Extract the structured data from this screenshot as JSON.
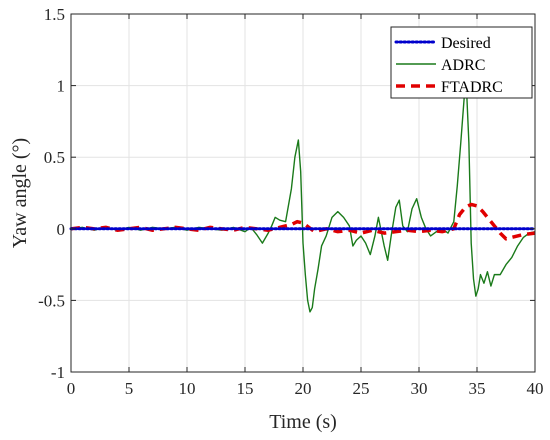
{
  "chart_data": {
    "type": "line",
    "xlabel": "Time (s)",
    "ylabel": "Yaw angle (°)",
    "xlim": [
      0,
      40
    ],
    "ylim": [
      -1,
      1.5
    ],
    "x_ticks": [
      "0",
      "5",
      "10",
      "15",
      "20",
      "25",
      "30",
      "35",
      "40"
    ],
    "y_ticks": [
      "-1",
      "-0.5",
      "0",
      "0.5",
      "1",
      "1.5"
    ],
    "grid": true,
    "legend_position": "top-right",
    "series": [
      {
        "name": "Desired",
        "color": "#0000cc",
        "style": "dotted",
        "x": [
          0,
          40
        ],
        "y": [
          0,
          0
        ]
      },
      {
        "name": "ADRC",
        "color": "#1a7a1a",
        "style": "solid",
        "x": [
          0,
          1,
          2,
          3,
          4,
          5,
          6,
          7,
          8,
          9,
          10,
          11,
          12,
          13,
          14,
          15,
          15.5,
          16,
          16.5,
          17,
          17.3,
          17.6,
          18,
          18.5,
          19,
          19.3,
          19.6,
          19.8,
          20,
          20.2,
          20.4,
          20.6,
          20.8,
          21,
          21.3,
          21.6,
          22,
          22.5,
          23,
          23.5,
          24,
          24.3,
          24.6,
          25,
          25.4,
          25.8,
          26.2,
          26.5,
          27,
          27.3,
          27.6,
          28,
          28.3,
          28.6,
          29,
          29.4,
          29.8,
          30.2,
          30.6,
          31,
          31.5,
          32,
          32.5,
          33,
          33.3,
          33.6,
          33.9,
          34.1,
          34.3,
          34.5,
          34.7,
          34.9,
          35.1,
          35.3,
          35.6,
          35.9,
          36.2,
          36.5,
          37,
          37.5,
          38,
          38.5,
          39,
          39.5,
          40
        ],
        "y": [
          0,
          0.01,
          -0.01,
          0.01,
          -0.01,
          0.01,
          -0.01,
          0.01,
          0,
          0.01,
          -0.01,
          0.01,
          0,
          -0.01,
          0.01,
          -0.02,
          0.01,
          -0.04,
          -0.1,
          -0.03,
          0.02,
          0.08,
          0.06,
          0.05,
          0.28,
          0.5,
          0.62,
          0.4,
          -0.1,
          -0.32,
          -0.5,
          -0.58,
          -0.55,
          -0.42,
          -0.28,
          -0.12,
          -0.05,
          0.08,
          0.12,
          0.08,
          0.02,
          -0.12,
          -0.08,
          -0.05,
          -0.1,
          -0.18,
          -0.05,
          0.08,
          -0.12,
          -0.22,
          -0.05,
          0.15,
          0.2,
          0.02,
          -0.02,
          0.14,
          0.21,
          0.08,
          0.0,
          -0.05,
          -0.02,
          0.0,
          -0.03,
          0.05,
          0.3,
          0.6,
          0.92,
          0.97,
          0.6,
          -0.1,
          -0.35,
          -0.47,
          -0.42,
          -0.32,
          -0.38,
          -0.3,
          -0.4,
          -0.32,
          -0.32,
          -0.25,
          -0.2,
          -0.12,
          -0.06,
          -0.03,
          -0.02
        ]
      },
      {
        "name": "FTADRC",
        "color": "#e00000",
        "style": "dashed",
        "x": [
          0,
          1,
          2,
          3,
          4,
          5,
          6,
          7,
          8,
          9,
          10,
          11,
          12,
          13,
          14,
          15,
          16,
          17,
          18,
          19,
          19.5,
          20,
          21,
          22,
          23,
          24,
          25,
          26,
          27,
          28,
          29,
          30,
          31,
          32,
          33,
          33.5,
          34,
          34.5,
          35,
          35.5,
          36,
          36.5,
          37,
          37.5,
          38,
          39,
          40
        ],
        "y": [
          0,
          0.01,
          0,
          0.01,
          -0.01,
          0,
          0.01,
          -0.01,
          0,
          0.01,
          0,
          -0.01,
          0.01,
          0,
          -0.01,
          0.01,
          0,
          -0.01,
          0.01,
          0.03,
          0.05,
          0.04,
          -0.02,
          0.0,
          -0.02,
          -0.01,
          -0.03,
          -0.01,
          -0.03,
          -0.02,
          -0.01,
          -0.02,
          -0.01,
          -0.02,
          0.0,
          0.1,
          0.15,
          0.17,
          0.16,
          0.12,
          0.07,
          0.02,
          -0.03,
          -0.07,
          -0.06,
          -0.04,
          -0.03
        ]
      }
    ]
  }
}
